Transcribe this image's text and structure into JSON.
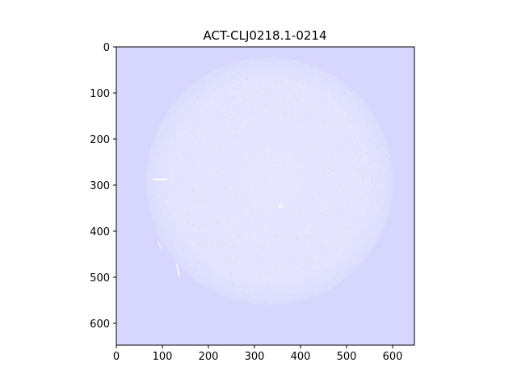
{
  "figure": {
    "title": "ACT-CLJ0218.1-0214",
    "background_color": "#d6d6ff",
    "disk_color": "#e8e8ff",
    "speckle_color": "#c8c8f4",
    "bright_color": "#ffffff"
  },
  "axes": {
    "x_ticks": [
      "0",
      "100",
      "200",
      "300",
      "400",
      "500",
      "600"
    ],
    "y_ticks": [
      "0",
      "100",
      "200",
      "300",
      "400",
      "500",
      "600"
    ],
    "x_range": [
      0,
      650
    ],
    "y_range": [
      0,
      650
    ]
  }
}
